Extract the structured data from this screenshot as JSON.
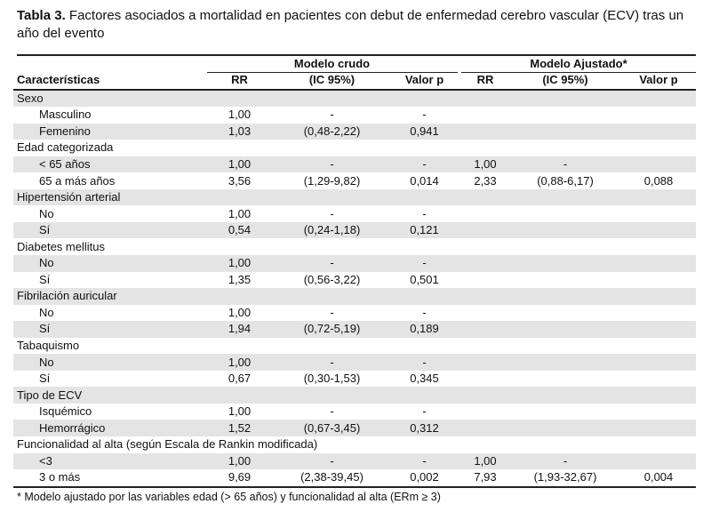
{
  "title": {
    "label": "Tabla 3.",
    "text": "Factores asociados a mortalidad en pacientes con debut de enfermedad cerebro vascular (ECV) tras un año del evento"
  },
  "table": {
    "group_headers": {
      "crude": "Modelo crudo",
      "adjusted": "Modelo Ajustado*"
    },
    "columns": [
      "Características",
      "RR",
      "(IC 95%)",
      "Valor p",
      "RR",
      "(IC 95%)",
      "Valor p"
    ],
    "rows": [
      {
        "type": "group",
        "shade": true,
        "cells": [
          "Sexo",
          "",
          "",
          "",
          "",
          "",
          ""
        ]
      },
      {
        "type": "sub",
        "shade": false,
        "cells": [
          "Masculino",
          "1,00",
          "-",
          "-",
          "",
          "",
          ""
        ]
      },
      {
        "type": "sub",
        "shade": true,
        "cells": [
          "Femenino",
          "1,03",
          "(0,48-2,22)",
          "0,941",
          "",
          "",
          ""
        ]
      },
      {
        "type": "group",
        "shade": false,
        "cells": [
          "Edad categorizada",
          "",
          "",
          "",
          "",
          "",
          ""
        ]
      },
      {
        "type": "sub",
        "shade": true,
        "cells": [
          "< 65 años",
          "1,00",
          "-",
          "-",
          "1,00",
          "-",
          ""
        ]
      },
      {
        "type": "sub",
        "shade": false,
        "cells": [
          "65 a más años",
          "3,56",
          "(1,29-9,82)",
          "0,014",
          "2,33",
          "(0,88-6,17)",
          "0,088"
        ]
      },
      {
        "type": "group",
        "shade": true,
        "cells": [
          "Hipertensión arterial",
          "",
          "",
          "",
          "",
          "",
          ""
        ]
      },
      {
        "type": "sub",
        "shade": false,
        "cells": [
          "No",
          "1,00",
          "-",
          "-",
          "",
          "",
          ""
        ]
      },
      {
        "type": "sub",
        "shade": true,
        "cells": [
          "Sí",
          "0,54",
          "(0,24-1,18)",
          "0,121",
          "",
          "",
          ""
        ]
      },
      {
        "type": "group",
        "shade": false,
        "cells": [
          "Diabetes mellitus",
          "",
          "",
          "",
          "",
          "",
          ""
        ]
      },
      {
        "type": "sub",
        "shade": true,
        "cells": [
          "No",
          "1,00",
          "-",
          "-",
          "",
          "",
          ""
        ]
      },
      {
        "type": "sub",
        "shade": false,
        "cells": [
          "Sí",
          "1,35",
          "(0,56-3,22)",
          "0,501",
          "",
          "",
          ""
        ]
      },
      {
        "type": "group",
        "shade": true,
        "cells": [
          "Fibrilación auricular",
          "",
          "",
          "",
          "",
          "",
          ""
        ]
      },
      {
        "type": "sub",
        "shade": false,
        "cells": [
          "No",
          "1,00",
          "-",
          "-",
          "",
          "",
          ""
        ]
      },
      {
        "type": "sub",
        "shade": true,
        "cells": [
          "Sí",
          "1,94",
          "(0,72-5,19)",
          "0,189",
          "",
          "",
          ""
        ]
      },
      {
        "type": "group",
        "shade": false,
        "cells": [
          "Tabaquismo",
          "",
          "",
          "",
          "",
          "",
          ""
        ]
      },
      {
        "type": "sub",
        "shade": true,
        "cells": [
          "No",
          "1,00",
          "-",
          "-",
          "",
          "",
          ""
        ]
      },
      {
        "type": "sub",
        "shade": false,
        "cells": [
          "Sí",
          "0,67",
          "(0,30-1,53)",
          "0,345",
          "",
          "",
          ""
        ]
      },
      {
        "type": "group",
        "shade": true,
        "cells": [
          "Tipo de ECV",
          "",
          "",
          "",
          "",
          "",
          ""
        ]
      },
      {
        "type": "sub",
        "shade": false,
        "cells": [
          "Isquémico",
          "1,00",
          "-",
          "-",
          "",
          "",
          ""
        ]
      },
      {
        "type": "sub",
        "shade": true,
        "cells": [
          "Hemorrágico",
          "1,52",
          "(0,67-3,45)",
          "0,312",
          "",
          "",
          ""
        ]
      },
      {
        "type": "group",
        "shade": false,
        "cells": [
          "Funcionalidad al alta (según Escala de Rankin modificada)",
          "",
          "",
          "",
          "",
          "",
          ""
        ]
      },
      {
        "type": "sub",
        "shade": true,
        "cells": [
          "<3",
          "1,00",
          "-",
          "-",
          "1,00",
          "-",
          ""
        ]
      },
      {
        "type": "sub",
        "shade": false,
        "cells": [
          "3 o más",
          "9,69",
          "(2,38-39,45)",
          "0,002",
          "7,93",
          "(1,93-32,67)",
          "0,004"
        ]
      }
    ]
  },
  "footnote": "* Modelo ajustado por las variables edad (> 65 años) y funcionalidad al alta (ERm ≥ 3)"
}
